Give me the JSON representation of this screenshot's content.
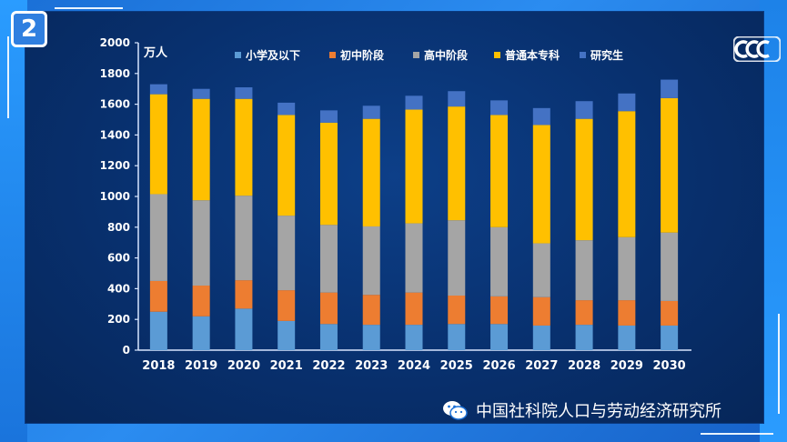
{
  "badge": "2",
  "watermark": "中国社科院人口与劳动经济研究所",
  "chart_data": {
    "type": "bar",
    "stacked": true,
    "title": "",
    "unit_label": "万人",
    "xlabel": "",
    "ylabel": "",
    "ylim": [
      0,
      2000
    ],
    "yticks": [
      0,
      200,
      400,
      600,
      800,
      1000,
      1200,
      1400,
      1600,
      1800,
      2000
    ],
    "grid": false,
    "legend_position": "top",
    "categories": [
      "2018",
      "2019",
      "2020",
      "2021",
      "2022",
      "2023",
      "2024",
      "2025",
      "2026",
      "2027",
      "2028",
      "2029",
      "2030"
    ],
    "series": [
      {
        "name": "小学及以下",
        "color": "#5b9bd5",
        "values": [
          250,
          220,
          270,
          190,
          170,
          165,
          165,
          170,
          170,
          160,
          165,
          160,
          160
        ]
      },
      {
        "name": "初中阶段",
        "color": "#ed7d31",
        "values": [
          200,
          200,
          185,
          200,
          205,
          195,
          210,
          185,
          180,
          185,
          160,
          165,
          160
        ]
      },
      {
        "name": "高中阶段",
        "color": "#a5a5a5",
        "values": [
          565,
          555,
          550,
          485,
          440,
          445,
          450,
          490,
          450,
          350,
          390,
          410,
          445
        ]
      },
      {
        "name": "普通本专科",
        "color": "#ffc000",
        "values": [
          650,
          660,
          630,
          655,
          665,
          700,
          740,
          740,
          730,
          770,
          790,
          820,
          875
        ]
      },
      {
        "name": "研究生",
        "color": "#4472c4",
        "values": [
          65,
          65,
          75,
          80,
          80,
          85,
          90,
          100,
          95,
          110,
          115,
          115,
          120
        ]
      }
    ]
  }
}
